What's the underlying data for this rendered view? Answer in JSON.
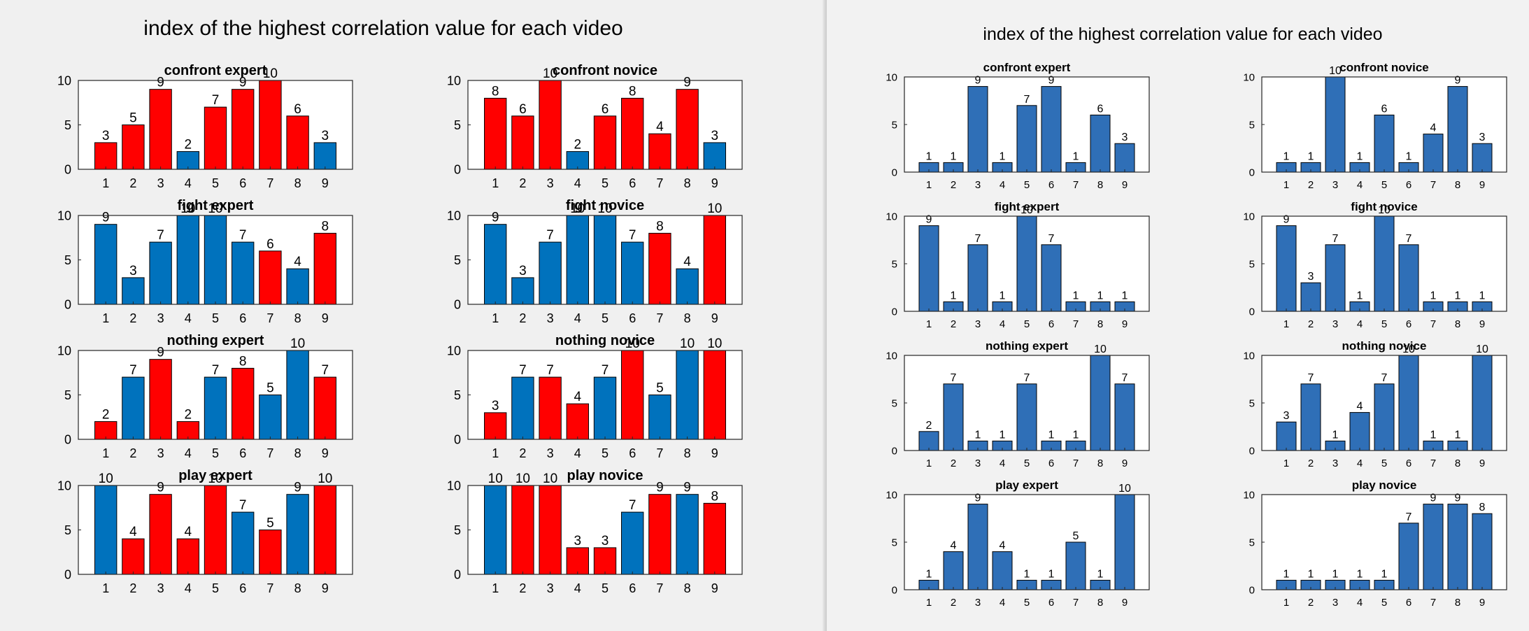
{
  "colors": {
    "blue": "#0072bd",
    "red": "#ff0000",
    "bar_right": "#2f6fb7"
  },
  "figures": [
    {
      "id": "left",
      "title": "index of the highest correlation value for each video",
      "chart_data": [
        {
          "type": "bar",
          "title": "confront expert",
          "categories": [
            "1",
            "2",
            "3",
            "4",
            "5",
            "6",
            "7",
            "8",
            "9"
          ],
          "values": [
            3,
            5,
            9,
            2,
            7,
            9,
            10,
            6,
            3
          ],
          "colors": [
            "red",
            "red",
            "red",
            "blue",
            "red",
            "red",
            "red",
            "red",
            "blue"
          ],
          "ylim": [
            0,
            10
          ],
          "yticks": [
            "0",
            "5",
            "10"
          ]
        },
        {
          "type": "bar",
          "title": "confront novice",
          "categories": [
            "1",
            "2",
            "3",
            "4",
            "5",
            "6",
            "7",
            "8",
            "9"
          ],
          "values": [
            8,
            6,
            10,
            2,
            6,
            8,
            4,
            9,
            3
          ],
          "colors": [
            "red",
            "red",
            "red",
            "blue",
            "red",
            "red",
            "red",
            "red",
            "blue"
          ],
          "ylim": [
            0,
            10
          ],
          "yticks": [
            "0",
            "5",
            "10"
          ]
        },
        {
          "type": "bar",
          "title": "fight expert",
          "categories": [
            "1",
            "2",
            "3",
            "4",
            "5",
            "6",
            "7",
            "8",
            "9"
          ],
          "values": [
            9,
            3,
            7,
            10,
            10,
            7,
            6,
            4,
            8
          ],
          "colors": [
            "blue",
            "blue",
            "blue",
            "blue",
            "blue",
            "blue",
            "red",
            "blue",
            "red"
          ],
          "ylim": [
            0,
            10
          ],
          "yticks": [
            "0",
            "5",
            "10"
          ]
        },
        {
          "type": "bar",
          "title": "fight novice",
          "categories": [
            "1",
            "2",
            "3",
            "4",
            "5",
            "6",
            "7",
            "8",
            "9"
          ],
          "values": [
            9,
            3,
            7,
            10,
            10,
            7,
            8,
            4,
            10
          ],
          "colors": [
            "blue",
            "blue",
            "blue",
            "blue",
            "blue",
            "blue",
            "red",
            "blue",
            "red"
          ],
          "ylim": [
            0,
            10
          ],
          "yticks": [
            "0",
            "5",
            "10"
          ]
        },
        {
          "type": "bar",
          "title": "nothing expert",
          "categories": [
            "1",
            "2",
            "3",
            "4",
            "5",
            "6",
            "7",
            "8",
            "9"
          ],
          "values": [
            2,
            7,
            9,
            2,
            7,
            8,
            5,
            10,
            7
          ],
          "colors": [
            "red",
            "blue",
            "red",
            "red",
            "blue",
            "red",
            "blue",
            "blue",
            "red"
          ],
          "ylim": [
            0,
            10
          ],
          "yticks": [
            "0",
            "5",
            "10"
          ]
        },
        {
          "type": "bar",
          "title": "nothing novice",
          "categories": [
            "1",
            "2",
            "3",
            "4",
            "5",
            "6",
            "7",
            "8",
            "9"
          ],
          "values": [
            3,
            7,
            7,
            4,
            7,
            10,
            5,
            10,
            10
          ],
          "colors": [
            "red",
            "blue",
            "red",
            "red",
            "blue",
            "red",
            "blue",
            "blue",
            "red"
          ],
          "ylim": [
            0,
            10
          ],
          "yticks": [
            "0",
            "5",
            "10"
          ]
        },
        {
          "type": "bar",
          "title": "play expert",
          "categories": [
            "1",
            "2",
            "3",
            "4",
            "5",
            "6",
            "7",
            "8",
            "9"
          ],
          "values": [
            10,
            4,
            9,
            4,
            10,
            7,
            5,
            9,
            10
          ],
          "colors": [
            "blue",
            "red",
            "red",
            "red",
            "red",
            "blue",
            "red",
            "blue",
            "red"
          ],
          "ylim": [
            0,
            10
          ],
          "yticks": [
            "0",
            "5",
            "10"
          ]
        },
        {
          "type": "bar",
          "title": "play novice",
          "categories": [
            "1",
            "2",
            "3",
            "4",
            "5",
            "6",
            "7",
            "8",
            "9"
          ],
          "values": [
            10,
            10,
            10,
            3,
            3,
            7,
            9,
            9,
            8
          ],
          "colors": [
            "blue",
            "red",
            "red",
            "red",
            "red",
            "blue",
            "red",
            "blue",
            "red"
          ],
          "ylim": [
            0,
            10
          ],
          "yticks": [
            "0",
            "5",
            "10"
          ]
        }
      ]
    },
    {
      "id": "right",
      "title": "index of the highest correlation value for each video",
      "chart_data": [
        {
          "type": "bar",
          "title": "confront expert",
          "categories": [
            "1",
            "2",
            "3",
            "4",
            "5",
            "6",
            "7",
            "8",
            "9"
          ],
          "values": [
            1,
            1,
            9,
            1,
            7,
            9,
            1,
            6,
            3
          ],
          "ylim": [
            0,
            10
          ],
          "yticks": [
            "0",
            "5",
            "10"
          ]
        },
        {
          "type": "bar",
          "title": "confront novice",
          "categories": [
            "1",
            "2",
            "3",
            "4",
            "5",
            "6",
            "7",
            "8",
            "9"
          ],
          "values": [
            1,
            1,
            10,
            1,
            6,
            1,
            4,
            9,
            3
          ],
          "ylim": [
            0,
            10
          ],
          "yticks": [
            "0",
            "5",
            "10"
          ]
        },
        {
          "type": "bar",
          "title": "fight expert",
          "categories": [
            "1",
            "2",
            "3",
            "4",
            "5",
            "6",
            "7",
            "8",
            "9"
          ],
          "values": [
            9,
            1,
            7,
            1,
            10,
            7,
            1,
            1,
            1
          ],
          "ylim": [
            0,
            10
          ],
          "yticks": [
            "0",
            "5",
            "10"
          ]
        },
        {
          "type": "bar",
          "title": "fight novice",
          "categories": [
            "1",
            "2",
            "3",
            "4",
            "5",
            "6",
            "7",
            "8",
            "9"
          ],
          "values": [
            9,
            3,
            7,
            1,
            10,
            7,
            1,
            1,
            1
          ],
          "ylim": [
            0,
            10
          ],
          "yticks": [
            "0",
            "5",
            "10"
          ]
        },
        {
          "type": "bar",
          "title": "nothing expert",
          "categories": [
            "1",
            "2",
            "3",
            "4",
            "5",
            "6",
            "7",
            "8",
            "9"
          ],
          "values": [
            2,
            7,
            1,
            1,
            7,
            1,
            1,
            10,
            7
          ],
          "ylim": [
            0,
            10
          ],
          "yticks": [
            "0",
            "5",
            "10"
          ]
        },
        {
          "type": "bar",
          "title": "nothing novice",
          "categories": [
            "1",
            "2",
            "3",
            "4",
            "5",
            "6",
            "7",
            "8",
            "9"
          ],
          "values": [
            3,
            7,
            1,
            4,
            7,
            10,
            1,
            1,
            10
          ],
          "ylim": [
            0,
            10
          ],
          "yticks": [
            "0",
            "5",
            "10"
          ]
        },
        {
          "type": "bar",
          "title": "play expert",
          "categories": [
            "1",
            "2",
            "3",
            "4",
            "5",
            "6",
            "7",
            "8",
            "9"
          ],
          "values": [
            1,
            4,
            9,
            4,
            1,
            1,
            5,
            1,
            10
          ],
          "ylim": [
            0,
            10
          ],
          "yticks": [
            "0",
            "5",
            "10"
          ]
        },
        {
          "type": "bar",
          "title": "play novice",
          "categories": [
            "1",
            "2",
            "3",
            "4",
            "5",
            "6",
            "7",
            "8",
            "9"
          ],
          "values": [
            1,
            1,
            1,
            1,
            1,
            7,
            9,
            9,
            8
          ],
          "ylim": [
            0,
            10
          ],
          "yticks": [
            "0",
            "5",
            "10"
          ]
        }
      ]
    }
  ]
}
